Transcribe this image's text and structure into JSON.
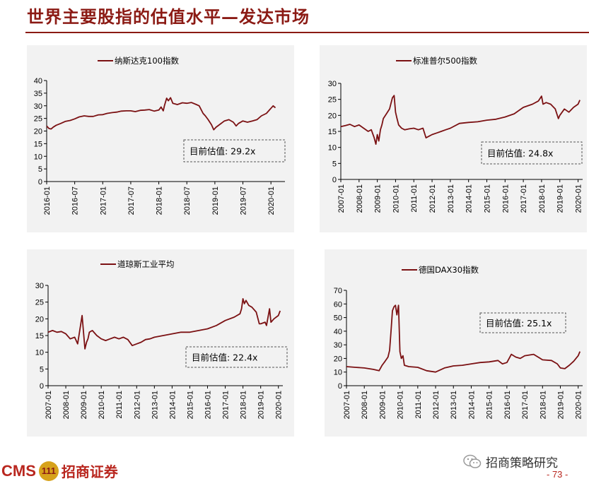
{
  "page": {
    "title": "世界主要股指的估值水平—发达市场",
    "page_number": "- 73 -",
    "wechat_name": "招商策略研究",
    "logo_text_en": "CMS",
    "logo_text_cn": "招商证券",
    "logo_mark_text": "111"
  },
  "colors": {
    "line": "#7b1113",
    "accent": "#8b1a14",
    "panel_bg": "#f2f2f2"
  },
  "chart_data": [
    {
      "type": "line",
      "legend": "纳斯达克100指数",
      "annotation": "目前估值:  29.2x",
      "ylim": [
        0,
        40
      ],
      "yticks": [
        0,
        5,
        10,
        15,
        20,
        25,
        30,
        35,
        40
      ],
      "xlim": [
        2016.0,
        2020.25
      ],
      "xtick_labels": [
        "2016-01",
        "2016-07",
        "2017-01",
        "2017-07",
        "2018-01",
        "2018-07",
        "2019-01",
        "2019-07",
        "2020-01"
      ],
      "series": [
        {
          "x": [
            2016.0,
            2016.04,
            2016.08,
            2016.12,
            2016.17,
            2016.25,
            2016.33,
            2016.42,
            2016.5,
            2016.58,
            2016.67,
            2016.75,
            2016.83,
            2016.92,
            2017.0,
            2017.08,
            2017.17,
            2017.25,
            2017.33,
            2017.42,
            2017.5,
            2017.58,
            2017.67,
            2017.75,
            2017.83,
            2017.92,
            2018.0,
            2018.04,
            2018.08,
            2018.1,
            2018.14,
            2018.17,
            2018.21,
            2018.25,
            2018.33,
            2018.42,
            2018.5,
            2018.58,
            2018.67,
            2018.72,
            2018.79,
            2018.83,
            2018.88,
            2018.94,
            2018.98,
            2019.02,
            2019.08,
            2019.17,
            2019.25,
            2019.33,
            2019.38,
            2019.42,
            2019.5,
            2019.58,
            2019.67,
            2019.75,
            2019.83,
            2019.92,
            2020.0,
            2020.04,
            2020.08
          ],
          "y": [
            22.0,
            21.0,
            20.8,
            21.6,
            22.3,
            23.0,
            23.8,
            24.2,
            24.8,
            25.6,
            26.0,
            25.8,
            25.8,
            26.4,
            26.5,
            27.0,
            27.3,
            27.5,
            27.9,
            28.0,
            28.0,
            27.7,
            28.2,
            28.3,
            28.5,
            27.9,
            28.3,
            29.5,
            28.0,
            30.0,
            33.0,
            32.0,
            33.2,
            31.0,
            30.5,
            31.2,
            31.0,
            31.3,
            30.5,
            30.0,
            27.0,
            26.0,
            24.5,
            22.5,
            20.5,
            21.5,
            22.5,
            24.0,
            24.5,
            23.5,
            22.0,
            23.0,
            24.0,
            23.5,
            24.0,
            24.5,
            26.0,
            27.0,
            29.0,
            30.0,
            29.2
          ]
        }
      ]
    },
    {
      "type": "line",
      "legend": "标准普尔500指数",
      "annotation": "目前估值:  24.8x",
      "ylim": [
        0,
        30
      ],
      "yticks": [
        0,
        5,
        10,
        15,
        20,
        25,
        30
      ],
      "xlim": [
        2007.0,
        2020.25
      ],
      "xtick_labels": [
        "2007-01",
        "2008-01",
        "2009-01",
        "2010-01",
        "2011-01",
        "2012-01",
        "2013-01",
        "2014-01",
        "2015-01",
        "2016-01",
        "2017-01",
        "2018-01",
        "2019-01",
        "2020-01"
      ],
      "series": [
        {
          "x": [
            2007.0,
            2007.25,
            2007.5,
            2007.75,
            2008.0,
            2008.25,
            2008.5,
            2008.67,
            2008.83,
            2008.92,
            2009.0,
            2009.08,
            2009.17,
            2009.25,
            2009.33,
            2009.5,
            2009.67,
            2009.83,
            2009.92,
            2010.0,
            2010.08,
            2010.17,
            2010.33,
            2010.5,
            2010.75,
            2011.0,
            2011.25,
            2011.5,
            2011.67,
            2011.83,
            2012.0,
            2012.25,
            2012.5,
            2012.75,
            2013.0,
            2013.5,
            2014.0,
            2014.5,
            2015.0,
            2015.5,
            2016.0,
            2016.5,
            2017.0,
            2017.5,
            2017.83,
            2018.0,
            2018.08,
            2018.25,
            2018.5,
            2018.75,
            2018.92,
            2019.0,
            2019.25,
            2019.5,
            2019.75,
            2020.0,
            2020.1
          ],
          "y": [
            16.5,
            16.8,
            17.2,
            16.5,
            17.0,
            16.0,
            15.0,
            15.5,
            13.0,
            11.0,
            14.0,
            12.0,
            15.5,
            17.0,
            19.0,
            20.5,
            22.0,
            25.5,
            26.2,
            21.0,
            19.0,
            17.0,
            16.0,
            15.5,
            15.8,
            16.0,
            15.5,
            16.0,
            13.0,
            13.5,
            14.0,
            14.5,
            15.0,
            15.5,
            16.0,
            17.5,
            17.8,
            18.0,
            18.5,
            18.8,
            19.5,
            20.5,
            22.5,
            23.5,
            24.5,
            26.0,
            23.5,
            24.0,
            23.5,
            22.0,
            19.0,
            20.0,
            22.0,
            21.0,
            22.5,
            23.5,
            24.8
          ]
        }
      ]
    },
    {
      "type": "line",
      "legend": "道琼斯工业平均",
      "annotation": "目前估值:  22.4x",
      "ylim": [
        0,
        30
      ],
      "yticks": [
        0,
        5,
        10,
        15,
        20,
        25,
        30
      ],
      "xlim": [
        2007.0,
        2020.25
      ],
      "xtick_labels": [
        "2007-01",
        "2008-01",
        "2009-01",
        "2010-01",
        "2011-01",
        "2012-01",
        "2013-01",
        "2014-01",
        "2015-01",
        "2016-01",
        "2017-01",
        "2018-01",
        "2019-01",
        "2020-01"
      ],
      "series": [
        {
          "x": [
            2007.0,
            2007.25,
            2007.5,
            2007.75,
            2008.0,
            2008.25,
            2008.5,
            2008.67,
            2008.83,
            2008.92,
            2009.0,
            2009.08,
            2009.17,
            2009.25,
            2009.33,
            2009.5,
            2009.75,
            2010.0,
            2010.25,
            2010.5,
            2010.75,
            2011.0,
            2011.25,
            2011.5,
            2011.75,
            2012.0,
            2012.25,
            2012.5,
            2012.75,
            2013.0,
            2013.5,
            2014.0,
            2014.5,
            2015.0,
            2015.5,
            2016.0,
            2016.5,
            2017.0,
            2017.5,
            2017.83,
            2017.92,
            2018.0,
            2018.08,
            2018.17,
            2018.33,
            2018.5,
            2018.75,
            2018.92,
            2019.0,
            2019.25,
            2019.33,
            2019.5,
            2019.58,
            2019.75,
            2020.0,
            2020.1
          ],
          "y": [
            16.0,
            16.5,
            16.0,
            16.2,
            15.5,
            14.0,
            14.5,
            12.5,
            18.0,
            21.0,
            16.0,
            11.0,
            13.0,
            14.0,
            16.0,
            16.5,
            15.0,
            14.0,
            13.5,
            14.0,
            14.5,
            14.0,
            14.5,
            13.8,
            12.0,
            12.5,
            13.0,
            13.8,
            14.0,
            14.5,
            15.0,
            15.5,
            16.0,
            16.0,
            16.5,
            17.0,
            18.0,
            19.5,
            20.5,
            21.5,
            23.0,
            26.0,
            24.5,
            25.5,
            24.0,
            23.5,
            22.0,
            18.5,
            18.5,
            19.0,
            18.0,
            23.0,
            19.0,
            20.0,
            21.0,
            22.4
          ]
        }
      ]
    },
    {
      "type": "line",
      "legend": "德国DAX30指数",
      "annotation": "目前估值:  25.1x",
      "ylim": [
        0,
        70
      ],
      "yticks": [
        0,
        10,
        20,
        30,
        40,
        50,
        60,
        70
      ],
      "xlim": [
        2007.0,
        2020.25
      ],
      "xtick_labels": [
        "2007-01",
        "2008-01",
        "2009-01",
        "2010-01",
        "2011-01",
        "2012-01",
        "2013-01",
        "2014-01",
        "2015-01",
        "2016-01",
        "2017-01",
        "2018-01",
        "2019-01",
        "2020-01"
      ],
      "series": [
        {
          "x": [
            2007.0,
            2007.5,
            2008.0,
            2008.5,
            2008.83,
            2009.0,
            2009.17,
            2009.33,
            2009.42,
            2009.5,
            2009.58,
            2009.67,
            2009.75,
            2009.83,
            2009.92,
            2010.0,
            2010.08,
            2010.17,
            2010.25,
            2010.5,
            2011.0,
            2011.5,
            2012.0,
            2012.5,
            2013.0,
            2013.5,
            2014.0,
            2014.5,
            2015.0,
            2015.5,
            2015.75,
            2016.0,
            2016.25,
            2016.5,
            2016.75,
            2017.0,
            2017.5,
            2018.0,
            2018.5,
            2018.83,
            2019.0,
            2019.25,
            2019.5,
            2019.75,
            2020.0,
            2020.1
          ],
          "y": [
            14.0,
            13.5,
            13.0,
            12.0,
            11.0,
            15.0,
            18.0,
            21.0,
            26.0,
            40.0,
            55.0,
            58.0,
            59.0,
            52.0,
            59.0,
            25.0,
            20.0,
            22.0,
            15.0,
            14.0,
            13.5,
            11.0,
            10.0,
            13.0,
            14.5,
            15.0,
            16.0,
            17.0,
            17.5,
            18.5,
            16.0,
            17.0,
            23.0,
            21.0,
            20.0,
            22.0,
            23.0,
            19.0,
            18.5,
            16.0,
            13.0,
            12.5,
            15.0,
            18.0,
            22.0,
            25.1
          ]
        }
      ]
    }
  ]
}
